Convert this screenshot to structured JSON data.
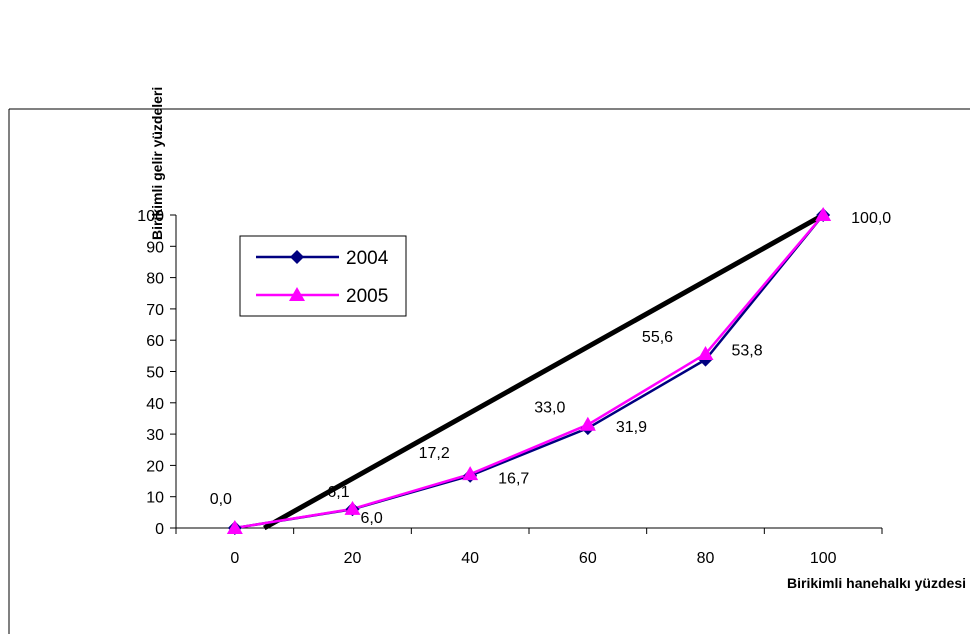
{
  "chart_data": {
    "type": "line",
    "xlabel": "Birikimli hanehalkı yüzdesi",
    "ylabel": "Birikimli gelir yüzdeleri",
    "x_ticks": [
      "0",
      "20",
      "40",
      "60",
      "80",
      "100"
    ],
    "y_ticks": [
      "0",
      "10",
      "20",
      "30",
      "40",
      "50",
      "60",
      "70",
      "80",
      "90",
      "100"
    ],
    "xlim": [
      -10,
      110
    ],
    "ylim": [
      0,
      100
    ],
    "grid": false,
    "legend": "upper-left",
    "equality_line": {
      "points": [
        [
          5,
          0
        ],
        [
          100,
          100
        ]
      ],
      "color": "#000000"
    },
    "series": [
      {
        "name": "2004",
        "x": [
          0,
          20,
          40,
          60,
          80,
          100
        ],
        "values": [
          0.0,
          6.0,
          16.7,
          31.9,
          53.8,
          100.0
        ],
        "labels": [
          "0,0",
          "6,0",
          "16,7",
          "31,9",
          "53,8",
          "100,0"
        ],
        "color": "#000080",
        "marker": "diamond"
      },
      {
        "name": "2005",
        "x": [
          0,
          20,
          40,
          60,
          80,
          100
        ],
        "values": [
          0.0,
          6.1,
          17.2,
          33.0,
          55.6,
          100.0
        ],
        "labels": [
          "",
          "6,1",
          "17,2",
          "33,0",
          "55,6",
          ""
        ],
        "color": "#ff00ff",
        "marker": "triangle"
      }
    ]
  }
}
